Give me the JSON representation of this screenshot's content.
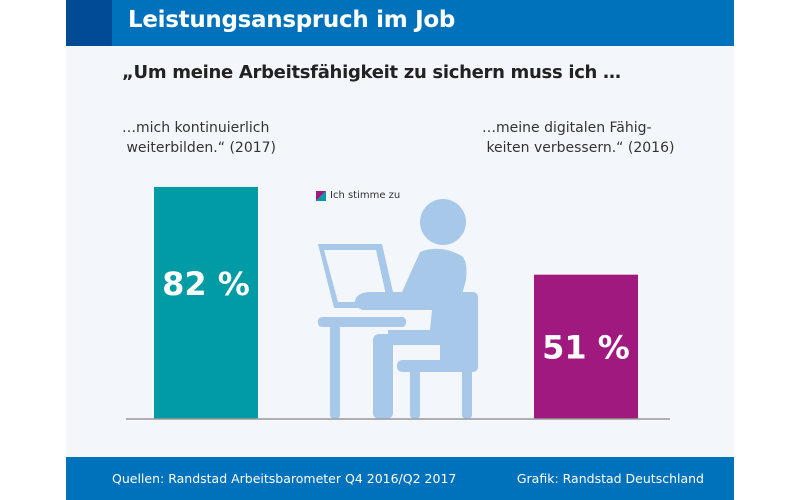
{
  "header": {
    "title": "Leistungsanspruch im Job"
  },
  "subtitle": "„Um meine Arbeitsfähigkeit zu sichern muss ich …",
  "chart_data": {
    "type": "bar",
    "title": "Leistungsanspruch im Job",
    "subtitle": "„Um meine Arbeitsfähigkeit zu sichern muss ich …",
    "categories": [
      "…mich kontinuierlich\n weiterbilden.“ (2017)",
      "…meine digitalen Fähig-\n keiten verbessern.“ (2016)"
    ],
    "series": [
      {
        "name": "Ich stimme zu",
        "values": [
          82,
          51
        ]
      }
    ],
    "data_labels": [
      "82 %",
      "51 %"
    ],
    "unit": "%",
    "ylim": [
      0,
      100
    ],
    "grid": false,
    "legend_position": "top-center",
    "colors": [
      "#009ba4",
      "#a0197e"
    ]
  },
  "legend": {
    "label": "Ich stimme zu"
  },
  "footer": {
    "source": "Quellen: Randstad Arbeitsbarometer Q4 2016/Q2 2017",
    "credit": "Grafik: Randstad Deutschland"
  },
  "colors": {
    "header": "#0072bc",
    "header_accent": "#004b93",
    "background": "#f3f7fc",
    "illustration": "#a8c8ea"
  },
  "illustration": {
    "icon": "person-at-laptop-icon"
  }
}
